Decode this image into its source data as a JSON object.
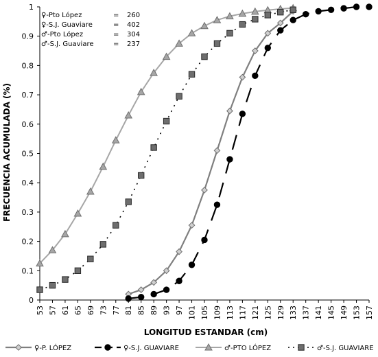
{
  "chart_data": {
    "type": "line",
    "title": "",
    "xlabel": "LONGITUD ESTANDAR (cm)",
    "ylabel": "FRECUENCIA ACUMULADA (%)",
    "ylim": [
      0,
      1
    ],
    "yticks": [
      "0",
      "0.1",
      "0.2",
      "0.3",
      "0.4",
      "0.5",
      "0.6",
      "0.7",
      "0.8",
      "0.9",
      "1"
    ],
    "categories": [
      "53",
      "57",
      "61",
      "65",
      "69",
      "73",
      "77",
      "81",
      "85",
      "89",
      "93",
      "97",
      "101",
      "105",
      "109",
      "113",
      "117",
      "121",
      "125",
      "129",
      "133",
      "137",
      "141",
      "145",
      "149",
      "153",
      "157"
    ],
    "grid": false,
    "legend_position": "bottom",
    "annotations": [
      {
        "label": "♀-Pto López",
        "eq": "=",
        "value": "260"
      },
      {
        "label": "♀-S.J. Guaviare",
        "eq": "=",
        "value": "402"
      },
      {
        "label": "♂-Pto López",
        "eq": "=",
        "value": "304"
      },
      {
        "label": "♂-S.J. Guaviare",
        "eq": "=",
        "value": "237"
      }
    ],
    "series": [
      {
        "name": "♀-P. LÓPEZ",
        "color": "#7f7f7f",
        "marker": "diamond",
        "x": [
          81,
          85,
          89,
          93,
          97,
          101,
          105,
          109,
          113,
          117,
          121,
          125,
          129,
          133
        ],
        "values": [
          0.02,
          0.035,
          0.06,
          0.1,
          0.165,
          0.255,
          0.375,
          0.51,
          0.645,
          0.76,
          0.85,
          0.91,
          0.945,
          0.985
        ]
      },
      {
        "name": "♀-S.J. GUAVIARE",
        "color": "#000000",
        "marker": "circle",
        "x": [
          81,
          85,
          89,
          93,
          97,
          101,
          105,
          109,
          113,
          117,
          121,
          125,
          129,
          133,
          137,
          141,
          145,
          149,
          153,
          157
        ],
        "values": [
          0.005,
          0.01,
          0.02,
          0.035,
          0.065,
          0.12,
          0.205,
          0.325,
          0.48,
          0.635,
          0.765,
          0.86,
          0.92,
          0.955,
          0.975,
          0.985,
          0.99,
          0.995,
          1.0,
          1.0
        ]
      },
      {
        "name": "♂-PTO LÓPEZ",
        "color": "#a6a6a6",
        "marker": "triangle",
        "x": [
          53,
          57,
          61,
          65,
          69,
          73,
          77,
          81,
          85,
          89,
          93,
          97,
          101,
          105,
          109,
          113,
          117,
          121,
          125,
          129,
          133
        ],
        "values": [
          0.125,
          0.17,
          0.225,
          0.295,
          0.37,
          0.455,
          0.545,
          0.63,
          0.71,
          0.775,
          0.83,
          0.875,
          0.91,
          0.935,
          0.955,
          0.968,
          0.977,
          0.984,
          0.989,
          0.993,
          0.996
        ]
      },
      {
        "name": "♂-S.J. GUAVIARE",
        "color": "#000000",
        "marker": "square",
        "x": [
          53,
          57,
          61,
          65,
          69,
          73,
          77,
          81,
          85,
          89,
          93,
          97,
          101,
          105,
          109,
          113,
          117,
          121,
          125,
          129,
          133
        ],
        "values": [
          0.035,
          0.05,
          0.07,
          0.1,
          0.14,
          0.19,
          0.255,
          0.335,
          0.425,
          0.52,
          0.61,
          0.695,
          0.77,
          0.83,
          0.875,
          0.91,
          0.94,
          0.958,
          0.972,
          0.982,
          0.99
        ]
      }
    ]
  }
}
